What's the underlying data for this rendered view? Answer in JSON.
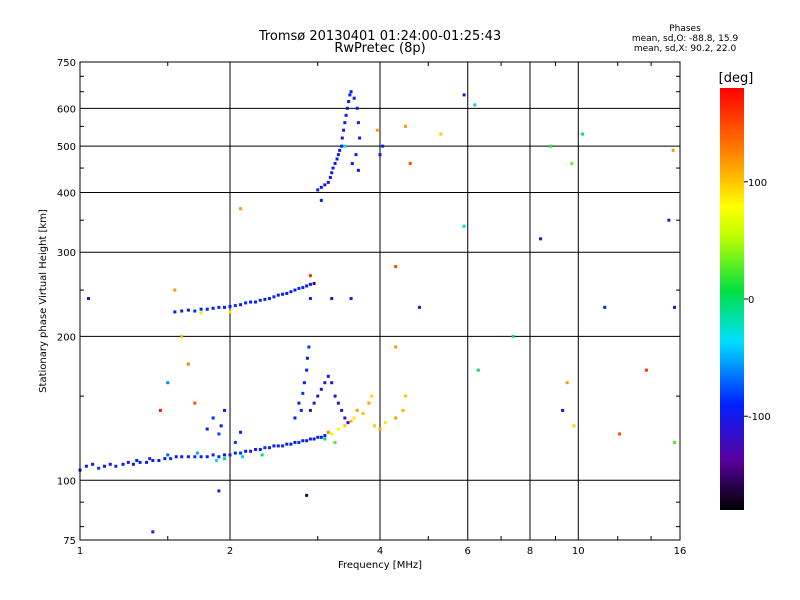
{
  "chart_data": {
    "type": "scatter",
    "title": "Tromsø 20130401 01:24:00-01:25:43",
    "subtitle": "RwPretec (8p)",
    "xlabel": "Frequency [MHz]",
    "ylabel": "Stationary phase Virtual Height [km]",
    "x_scale": "log",
    "y_scale": "log",
    "xlim": [
      1,
      16
    ],
    "ylim": [
      75,
      750
    ],
    "x_ticks": [
      1,
      2,
      4,
      6,
      8,
      10,
      16
    ],
    "y_ticks": [
      75,
      100,
      200,
      300,
      400,
      500,
      600,
      750
    ],
    "grid": true,
    "colorbar": {
      "label": "[deg]",
      "ticks": [
        100,
        0,
        -100
      ],
      "range": [
        -180,
        180
      ],
      "colormap": "rainbow"
    },
    "phase_stats": {
      "heading": "Phases",
      "line_o": "mean, sd,O: -88.8, 15.9",
      "line_x": "mean, sd,X:  90.2, 22.0"
    },
    "points": [
      {
        "f": 1.0,
        "h": 105,
        "p": -110
      },
      {
        "f": 1.03,
        "h": 107,
        "p": -100
      },
      {
        "f": 1.06,
        "h": 108,
        "p": -115
      },
      {
        "f": 1.09,
        "h": 106,
        "p": -95
      },
      {
        "f": 1.12,
        "h": 107,
        "p": -105
      },
      {
        "f": 1.15,
        "h": 108,
        "p": -110
      },
      {
        "f": 1.18,
        "h": 107,
        "p": -95
      },
      {
        "f": 1.22,
        "h": 108,
        "p": -100
      },
      {
        "f": 1.25,
        "h": 109,
        "p": -120
      },
      {
        "f": 1.28,
        "h": 108,
        "p": -110
      },
      {
        "f": 1.32,
        "h": 109,
        "p": -98
      },
      {
        "f": 1.36,
        "h": 109,
        "p": -105
      },
      {
        "f": 1.4,
        "h": 110,
        "p": -112
      },
      {
        "f": 1.44,
        "h": 110,
        "p": -100
      },
      {
        "f": 1.48,
        "h": 111,
        "p": -108
      },
      {
        "f": 1.52,
        "h": 111,
        "p": -95
      },
      {
        "f": 1.56,
        "h": 112,
        "p": -102
      },
      {
        "f": 1.6,
        "h": 112,
        "p": -110
      },
      {
        "f": 1.65,
        "h": 112,
        "p": -100
      },
      {
        "f": 1.7,
        "h": 112,
        "p": -95
      },
      {
        "f": 1.75,
        "h": 112,
        "p": -105
      },
      {
        "f": 1.8,
        "h": 112,
        "p": -100
      },
      {
        "f": 1.85,
        "h": 113,
        "p": -108
      },
      {
        "f": 1.9,
        "h": 112,
        "p": -98
      },
      {
        "f": 1.95,
        "h": 113,
        "p": -102
      },
      {
        "f": 2.0,
        "h": 113,
        "p": -110
      },
      {
        "f": 2.05,
        "h": 114,
        "p": -100
      },
      {
        "f": 2.1,
        "h": 114,
        "p": -95
      },
      {
        "f": 2.15,
        "h": 115,
        "p": -105
      },
      {
        "f": 2.2,
        "h": 115,
        "p": -100
      },
      {
        "f": 2.25,
        "h": 116,
        "p": -112
      },
      {
        "f": 2.3,
        "h": 116,
        "p": -100
      },
      {
        "f": 2.35,
        "h": 117,
        "p": -95
      },
      {
        "f": 2.4,
        "h": 117,
        "p": -105
      },
      {
        "f": 2.45,
        "h": 118,
        "p": -108
      },
      {
        "f": 2.5,
        "h": 118,
        "p": -100
      },
      {
        "f": 2.55,
        "h": 118,
        "p": -98
      },
      {
        "f": 2.6,
        "h": 119,
        "p": -110
      },
      {
        "f": 2.65,
        "h": 119,
        "p": -100
      },
      {
        "f": 2.7,
        "h": 120,
        "p": -105
      },
      {
        "f": 2.75,
        "h": 120,
        "p": -95
      },
      {
        "f": 2.8,
        "h": 121,
        "p": -102
      },
      {
        "f": 2.85,
        "h": 121,
        "p": -110
      },
      {
        "f": 2.9,
        "h": 122,
        "p": -100
      },
      {
        "f": 2.95,
        "h": 122,
        "p": -108
      },
      {
        "f": 3.0,
        "h": 123,
        "p": -98
      },
      {
        "f": 3.05,
        "h": 123,
        "p": -105
      },
      {
        "f": 3.1,
        "h": 124,
        "p": -100
      },
      {
        "f": 1.3,
        "h": 110,
        "p": -100
      },
      {
        "f": 1.38,
        "h": 111,
        "p": -95
      },
      {
        "f": 1.5,
        "h": 113,
        "p": -80
      },
      {
        "f": 1.72,
        "h": 114,
        "p": -60
      },
      {
        "f": 1.88,
        "h": 110,
        "p": -40
      },
      {
        "f": 1.95,
        "h": 111,
        "p": -20
      },
      {
        "f": 2.12,
        "h": 112,
        "p": -50
      },
      {
        "f": 2.32,
        "h": 113,
        "p": -10
      },
      {
        "f": 2.05,
        "h": 120,
        "p": -95
      },
      {
        "f": 2.1,
        "h": 126,
        "p": -100
      },
      {
        "f": 1.92,
        "h": 130,
        "p": -105
      },
      {
        "f": 1.95,
        "h": 140,
        "p": -100
      },
      {
        "f": 1.9,
        "h": 125,
        "p": -90
      },
      {
        "f": 1.85,
        "h": 135,
        "p": -95
      },
      {
        "f": 1.8,
        "h": 128,
        "p": -100
      },
      {
        "f": 2.7,
        "h": 135,
        "p": -100
      },
      {
        "f": 2.75,
        "h": 145,
        "p": -105
      },
      {
        "f": 2.8,
        "h": 152,
        "p": -95
      },
      {
        "f": 2.82,
        "h": 160,
        "p": -100
      },
      {
        "f": 2.85,
        "h": 170,
        "p": -110
      },
      {
        "f": 2.86,
        "h": 180,
        "p": -100
      },
      {
        "f": 2.88,
        "h": 190,
        "p": -95
      },
      {
        "f": 2.78,
        "h": 140,
        "p": -100
      },
      {
        "f": 2.9,
        "h": 140,
        "p": -120
      },
      {
        "f": 2.95,
        "h": 145,
        "p": -115
      },
      {
        "f": 3.0,
        "h": 150,
        "p": -118
      },
      {
        "f": 3.05,
        "h": 155,
        "p": -122
      },
      {
        "f": 3.1,
        "h": 160,
        "p": -120
      },
      {
        "f": 3.15,
        "h": 165,
        "p": -115
      },
      {
        "f": 3.2,
        "h": 160,
        "p": -110
      },
      {
        "f": 3.25,
        "h": 150,
        "p": -112
      },
      {
        "f": 3.3,
        "h": 145,
        "p": -118
      },
      {
        "f": 3.35,
        "h": 140,
        "p": -115
      },
      {
        "f": 3.4,
        "h": 135,
        "p": -120
      },
      {
        "f": 3.45,
        "h": 132,
        "p": -112
      },
      {
        "f": 3.2,
        "h": 125,
        "p": 60
      },
      {
        "f": 3.3,
        "h": 128,
        "p": 80
      },
      {
        "f": 3.4,
        "h": 130,
        "p": 100
      },
      {
        "f": 3.5,
        "h": 133,
        "p": 110
      },
      {
        "f": 3.55,
        "h": 135,
        "p": 90
      },
      {
        "f": 3.6,
        "h": 140,
        "p": 120
      },
      {
        "f": 3.7,
        "h": 138,
        "p": 105
      },
      {
        "f": 3.8,
        "h": 145,
        "p": 115
      },
      {
        "f": 3.85,
        "h": 150,
        "p": 95
      },
      {
        "f": 3.9,
        "h": 130,
        "p": 100
      },
      {
        "f": 4.0,
        "h": 128,
        "p": 110
      },
      {
        "f": 4.1,
        "h": 132,
        "p": 90
      },
      {
        "f": 4.3,
        "h": 135,
        "p": 120
      },
      {
        "f": 4.45,
        "h": 140,
        "p": 110
      },
      {
        "f": 4.5,
        "h": 150,
        "p": 100
      },
      {
        "f": 3.1,
        "h": 122,
        "p": -10
      },
      {
        "f": 3.25,
        "h": 120,
        "p": 20
      },
      {
        "f": 3.15,
        "h": 126,
        "p": 130
      },
      {
        "f": 1.55,
        "h": 225,
        "p": -100
      },
      {
        "f": 1.6,
        "h": 226,
        "p": -110
      },
      {
        "f": 1.65,
        "h": 227,
        "p": -105
      },
      {
        "f": 1.7,
        "h": 226,
        "p": -95
      },
      {
        "f": 1.75,
        "h": 228,
        "p": -100
      },
      {
        "f": 1.8,
        "h": 228,
        "p": -108
      },
      {
        "f": 1.85,
        "h": 229,
        "p": -100
      },
      {
        "f": 1.9,
        "h": 230,
        "p": -98
      },
      {
        "f": 1.95,
        "h": 230,
        "p": -105
      },
      {
        "f": 2.0,
        "h": 231,
        "p": -100
      },
      {
        "f": 2.05,
        "h": 232,
        "p": -95
      },
      {
        "f": 2.1,
        "h": 233,
        "p": -110
      },
      {
        "f": 2.15,
        "h": 235,
        "p": -100
      },
      {
        "f": 2.2,
        "h": 236,
        "p": -105
      },
      {
        "f": 2.25,
        "h": 236,
        "p": -100
      },
      {
        "f": 2.3,
        "h": 238,
        "p": -98
      },
      {
        "f": 2.35,
        "h": 239,
        "p": -105
      },
      {
        "f": 2.4,
        "h": 240,
        "p": -100
      },
      {
        "f": 2.45,
        "h": 242,
        "p": -95
      },
      {
        "f": 2.5,
        "h": 244,
        "p": -110
      },
      {
        "f": 2.55,
        "h": 245,
        "p": -100
      },
      {
        "f": 2.6,
        "h": 246,
        "p": -102
      },
      {
        "f": 2.65,
        "h": 248,
        "p": -100
      },
      {
        "f": 2.7,
        "h": 250,
        "p": -105
      },
      {
        "f": 2.75,
        "h": 252,
        "p": -95
      },
      {
        "f": 2.8,
        "h": 253,
        "p": -100
      },
      {
        "f": 2.85,
        "h": 255,
        "p": -108
      },
      {
        "f": 2.9,
        "h": 257,
        "p": -100
      },
      {
        "f": 2.95,
        "h": 258,
        "p": -150
      },
      {
        "f": 2.9,
        "h": 268,
        "p": 160
      },
      {
        "f": 2.0,
        "h": 225,
        "p": 90
      },
      {
        "f": 1.75,
        "h": 224,
        "p": 60
      },
      {
        "f": 3.0,
        "h": 405,
        "p": -110
      },
      {
        "f": 3.05,
        "h": 410,
        "p": -100
      },
      {
        "f": 3.1,
        "h": 415,
        "p": -120
      },
      {
        "f": 3.15,
        "h": 420,
        "p": -105
      },
      {
        "f": 3.18,
        "h": 430,
        "p": -110
      },
      {
        "f": 3.2,
        "h": 440,
        "p": -100
      },
      {
        "f": 3.22,
        "h": 450,
        "p": -115
      },
      {
        "f": 3.25,
        "h": 460,
        "p": -105
      },
      {
        "f": 3.28,
        "h": 470,
        "p": -100
      },
      {
        "f": 3.3,
        "h": 480,
        "p": -110
      },
      {
        "f": 3.32,
        "h": 490,
        "p": -105
      },
      {
        "f": 3.35,
        "h": 500,
        "p": -100
      },
      {
        "f": 3.36,
        "h": 520,
        "p": -110
      },
      {
        "f": 3.38,
        "h": 540,
        "p": -115
      },
      {
        "f": 3.4,
        "h": 560,
        "p": -105
      },
      {
        "f": 3.42,
        "h": 580,
        "p": -100
      },
      {
        "f": 3.44,
        "h": 600,
        "p": -110
      },
      {
        "f": 3.46,
        "h": 620,
        "p": -105
      },
      {
        "f": 3.48,
        "h": 640,
        "p": -100
      },
      {
        "f": 3.5,
        "h": 650,
        "p": -110
      },
      {
        "f": 3.55,
        "h": 630,
        "p": -115
      },
      {
        "f": 3.6,
        "h": 600,
        "p": -100
      },
      {
        "f": 3.62,
        "h": 560,
        "p": -108
      },
      {
        "f": 3.64,
        "h": 520,
        "p": -110
      },
      {
        "f": 3.58,
        "h": 480,
        "p": -100
      },
      {
        "f": 3.52,
        "h": 460,
        "p": -105
      },
      {
        "f": 3.4,
        "h": 500,
        "p": -40
      },
      {
        "f": 3.05,
        "h": 385,
        "p": -100
      },
      {
        "f": 3.62,
        "h": 445,
        "p": -110
      },
      {
        "f": 1.04,
        "h": 240,
        "p": -130
      },
      {
        "f": 1.55,
        "h": 250,
        "p": 120
      },
      {
        "f": 1.6,
        "h": 200,
        "p": 110
      },
      {
        "f": 1.65,
        "h": 175,
        "p": 130
      },
      {
        "f": 1.7,
        "h": 145,
        "p": 150
      },
      {
        "f": 1.5,
        "h": 160,
        "p": -70
      },
      {
        "f": 1.45,
        "h": 140,
        "p": 170
      },
      {
        "f": 1.9,
        "h": 95,
        "p": -110
      },
      {
        "f": 2.1,
        "h": 370,
        "p": 120
      },
      {
        "f": 2.85,
        "h": 93,
        "p": -160
      },
      {
        "f": 2.9,
        "h": 240,
        "p": -100
      },
      {
        "f": 3.2,
        "h": 240,
        "p": -130
      },
      {
        "f": 3.5,
        "h": 240,
        "p": -120
      },
      {
        "f": 1.4,
        "h": 78,
        "p": -110
      },
      {
        "f": 4.3,
        "h": 280,
        "p": 150
      },
      {
        "f": 4.3,
        "h": 190,
        "p": 120
      },
      {
        "f": 4.5,
        "h": 550,
        "p": 120
      },
      {
        "f": 4.6,
        "h": 460,
        "p": 150
      },
      {
        "f": 4.8,
        "h": 230,
        "p": -110
      },
      {
        "f": 5.3,
        "h": 530,
        "p": 100
      },
      {
        "f": 5.9,
        "h": 340,
        "p": -30
      },
      {
        "f": 5.9,
        "h": 640,
        "p": -110
      },
      {
        "f": 6.2,
        "h": 610,
        "p": -50
      },
      {
        "f": 6.3,
        "h": 170,
        "p": -10
      },
      {
        "f": 7.4,
        "h": 200,
        "p": -10
      },
      {
        "f": 8.4,
        "h": 320,
        "p": -120
      },
      {
        "f": 8.8,
        "h": 500,
        "p": 10
      },
      {
        "f": 9.3,
        "h": 140,
        "p": -110
      },
      {
        "f": 9.5,
        "h": 160,
        "p": 120
      },
      {
        "f": 9.7,
        "h": 460,
        "p": 30
      },
      {
        "f": 9.8,
        "h": 130,
        "p": 100
      },
      {
        "f": 10.2,
        "h": 530,
        "p": -20
      },
      {
        "f": 11.3,
        "h": 230,
        "p": -100
      },
      {
        "f": 12.1,
        "h": 125,
        "p": 150
      },
      {
        "f": 13.7,
        "h": 170,
        "p": 160
      },
      {
        "f": 15.2,
        "h": 350,
        "p": -110
      },
      {
        "f": 15.5,
        "h": 490,
        "p": 120
      },
      {
        "f": 15.6,
        "h": 230,
        "p": -130
      },
      {
        "f": 15.6,
        "h": 120,
        "p": 20
      },
      {
        "f": 4.0,
        "h": 480,
        "p": -110
      },
      {
        "f": 4.05,
        "h": 500,
        "p": -105
      },
      {
        "f": 3.95,
        "h": 540,
        "p": 120
      }
    ]
  }
}
